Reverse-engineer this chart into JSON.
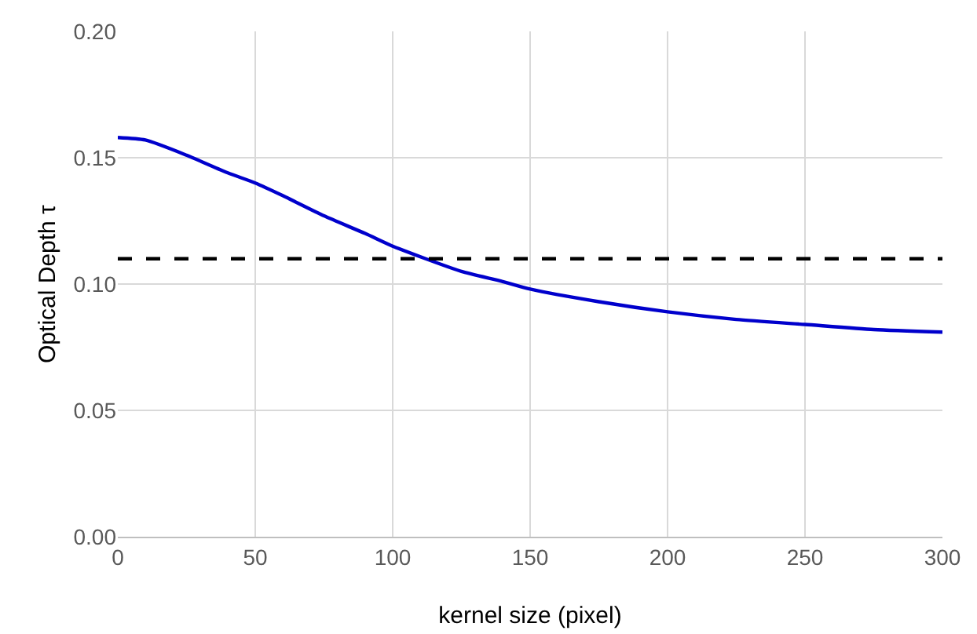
{
  "chart_data": {
    "type": "line",
    "xlabel": "kernel size (pixel)",
    "ylabel": "Optical Depth τ",
    "x": [
      0,
      10,
      25,
      40,
      50,
      60,
      75,
      90,
      100,
      112,
      125,
      140,
      150,
      175,
      200,
      225,
      250,
      275,
      300
    ],
    "series": [
      {
        "color": "#0000cc",
        "values": [
          0.158,
          0.157,
          0.151,
          0.144,
          0.14,
          0.135,
          0.127,
          0.12,
          0.115,
          0.11,
          0.105,
          0.101,
          0.098,
          0.093,
          0.089,
          0.086,
          0.084,
          0.082,
          0.081
        ]
      }
    ],
    "xlim": [
      0,
      300
    ],
    "xticks": [
      0,
      50,
      100,
      150,
      200,
      250,
      300
    ],
    "ylim": [
      0,
      0.2
    ],
    "yticks": [
      {
        "value": 0,
        "label": "0.00"
      },
      {
        "value": 0.05,
        "label": "0.05"
      },
      {
        "value": 0.1,
        "label": "0.10"
      },
      {
        "value": 0.15,
        "label": "0.15"
      },
      {
        "value": 0.2,
        "label": "0.20"
      }
    ],
    "ref_lines": [
      {
        "axis": "y",
        "value": 0.11,
        "color": "#000000",
        "line_style": "dashed"
      }
    ],
    "grid": true,
    "marker": "none",
    "line_style": "solid"
  }
}
